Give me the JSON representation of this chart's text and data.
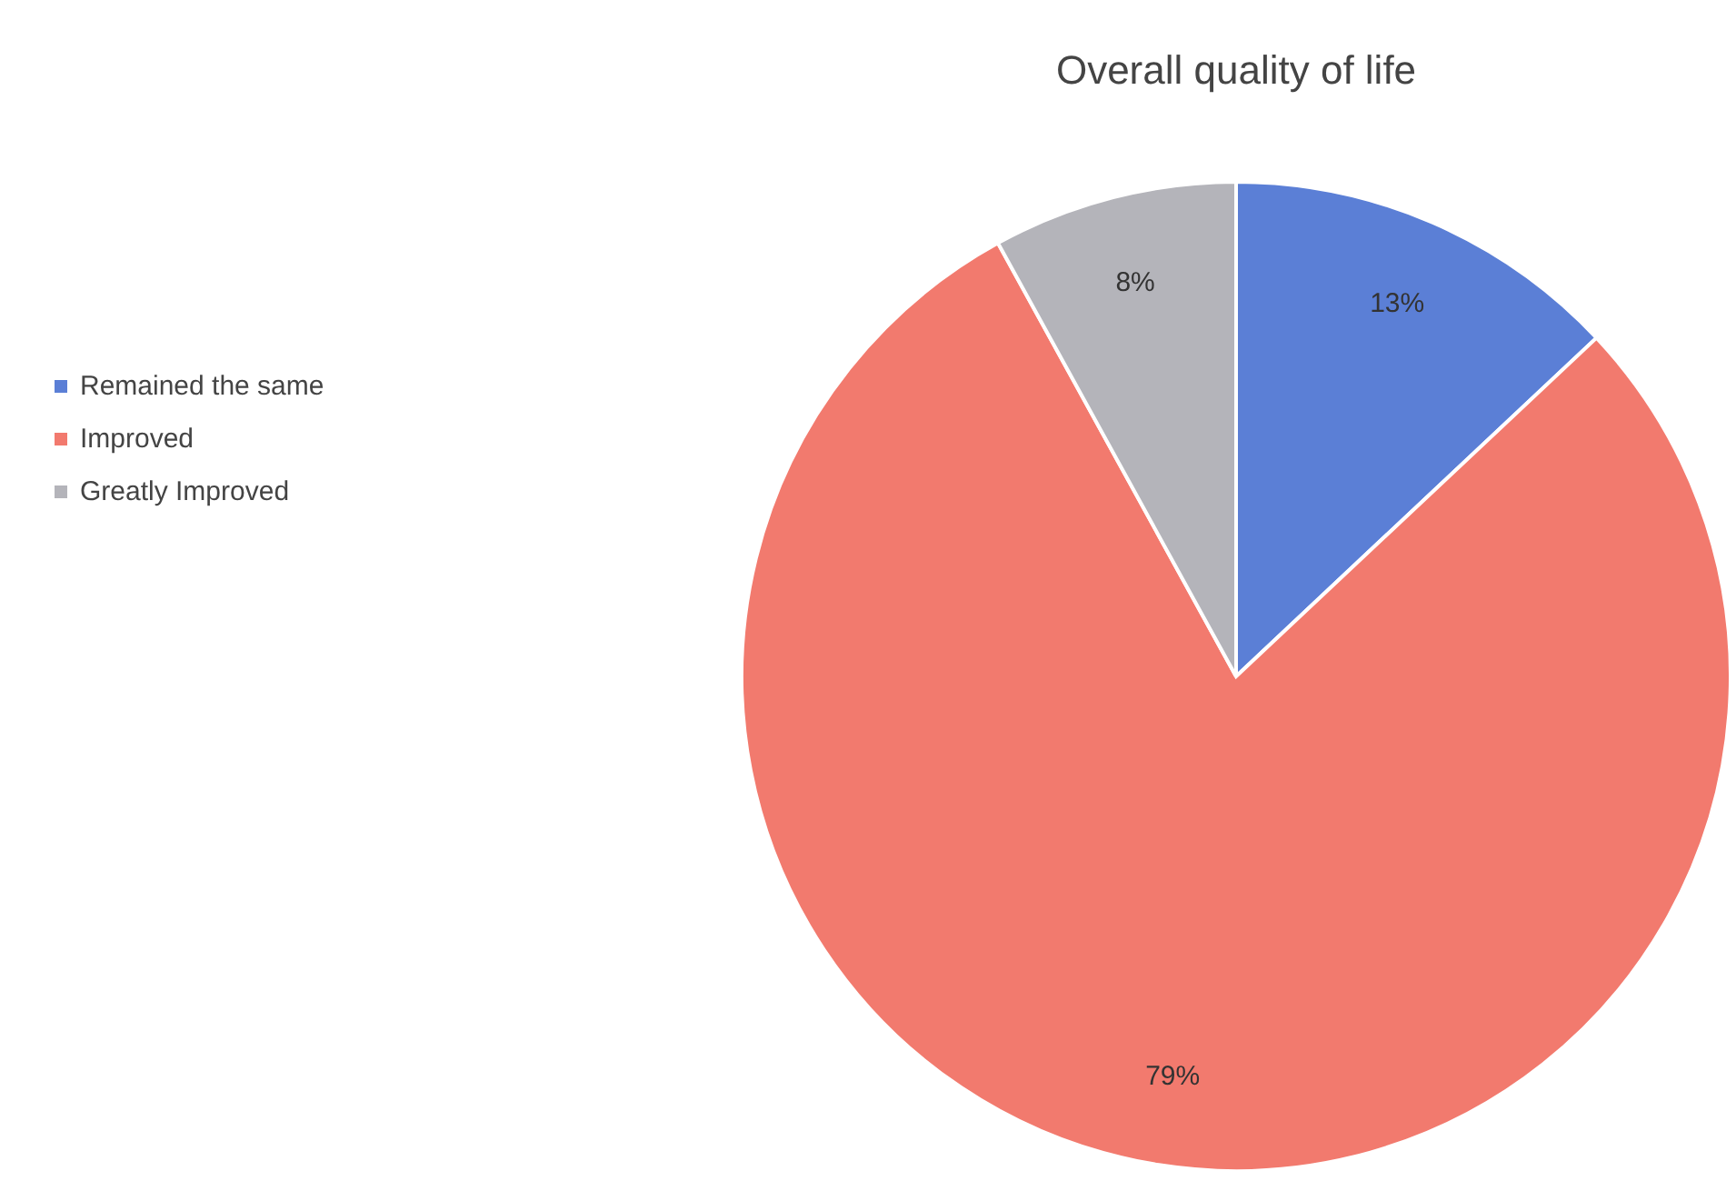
{
  "chart_data": {
    "type": "pie",
    "title": "Overall quality of life",
    "categories": [
      "Remained the same",
      "Improved",
      "Greatly Improved"
    ],
    "values": [
      13,
      79,
      8
    ],
    "colors": [
      "#5b7fd6",
      "#f27a6e",
      "#b4b4ba"
    ],
    "value_labels": [
      "13%",
      "79%",
      "8%"
    ],
    "legend": "left"
  }
}
